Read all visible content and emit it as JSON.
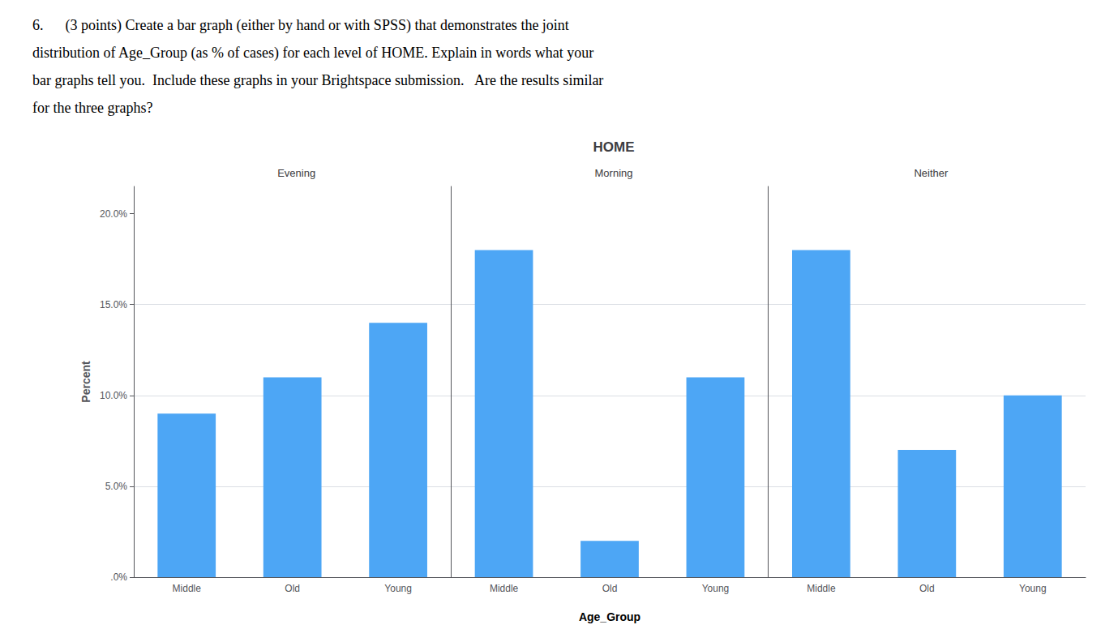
{
  "title": "HOME",
  "xlabel": "Age_Group",
  "annotations": [
    "6.      (3 points) Create a bar graph (either by hand or with SPSS) that demonstrates the joint",
    "distribution of Age_Group (as % of cases) for each level of HOME. Explain in words what your",
    "bar graphs tell you.  Include these graphs in your Brightspace submission.   Are the results similar",
    "for the three graphs?"
  ],
  "chart_data": [
    {
      "type": "bar",
      "title": "Evening",
      "ylabel": "Percent",
      "categories": [
        "Middle",
        "Old",
        "Young"
      ],
      "values": [
        9.0,
        11.0,
        14.0
      ],
      "color": "#4DA6F5",
      "ylim": [
        0,
        21.5
      ],
      "yticks": [
        {
          "value": 0,
          "label": ".0%"
        },
        {
          "value": 5,
          "label": "5.0%"
        },
        {
          "value": 10,
          "label": "10.0%"
        },
        {
          "value": 15,
          "label": "15.0%"
        },
        {
          "value": 20,
          "label": "20.0%"
        }
      ],
      "grid": true
    },
    {
      "type": "bar",
      "title": "Morning",
      "categories": [
        "Middle",
        "Old",
        "Young"
      ],
      "values": [
        18.0,
        2.0,
        11.0
      ],
      "color": "#4DA6F5",
      "ylim": [
        0,
        21.5
      ],
      "yticks": [
        {
          "value": 0,
          "label": ".0%"
        },
        {
          "value": 5,
          "label": "5.0%"
        },
        {
          "value": 10,
          "label": "10.0%"
        },
        {
          "value": 15,
          "label": "15.0%"
        },
        {
          "value": 20,
          "label": "20.0%"
        }
      ],
      "grid": true,
      "tick_labels": "x"
    },
    {
      "type": "bar",
      "title": "Neither",
      "categories": [
        "Middle",
        "Old",
        "Young"
      ],
      "values": [
        18.0,
        7.0,
        10.0
      ],
      "color": "#4DA6F5",
      "ylim": [
        0,
        21.5
      ],
      "yticks": [
        {
          "value": 0,
          "label": ".0%"
        },
        {
          "value": 5,
          "label": "5.0%"
        },
        {
          "value": 10,
          "label": "10.0%"
        },
        {
          "value": 15,
          "label": "15.0%"
        },
        {
          "value": 20,
          "label": "20.0%"
        }
      ],
      "grid": true,
      "tick_labels": "x"
    }
  ]
}
